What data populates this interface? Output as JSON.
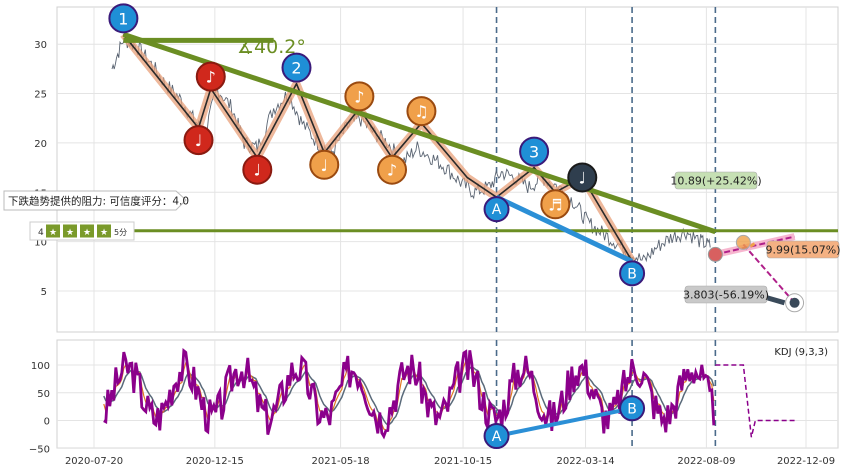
{
  "chart_data": [
    {
      "type": "line",
      "ylim": [
        0,
        34
      ],
      "y_ticks": [
        5,
        10,
        15,
        20,
        25,
        30
      ],
      "y_tick_labels": [
        "5",
        "10",
        "15",
        "20",
        "25",
        "30"
      ],
      "grid": true,
      "price_series": {
        "x": [
          "2020-08-11",
          "2020-08-25",
          "2020-09-10",
          "2020-09-28",
          "2020-10-15",
          "2020-11-02",
          "2020-11-18",
          "2020-12-03",
          "2020-12-18",
          "2021-01-05",
          "2021-01-20",
          "2021-02-05",
          "2021-02-25",
          "2021-03-15",
          "2021-04-01",
          "2021-04-20",
          "2021-05-07",
          "2021-05-25",
          "2021-06-10",
          "2021-06-28",
          "2021-07-15",
          "2021-08-02",
          "2021-08-20",
          "2021-09-07",
          "2021-09-24",
          "2021-10-12",
          "2021-10-28",
          "2021-11-15",
          "2021-12-01",
          "2021-12-17",
          "2022-01-04",
          "2022-01-20",
          "2022-02-10",
          "2022-02-28",
          "2022-03-16",
          "2022-04-01",
          "2022-04-19",
          "2022-05-06",
          "2022-05-24",
          "2022-06-10",
          "2022-06-28",
          "2022-07-15",
          "2022-08-02",
          "2022-08-15"
        ],
        "y": [
          27.5,
          30.5,
          29.8,
          28.0,
          26.0,
          24.5,
          22.5,
          21.0,
          25.5,
          23.5,
          20.0,
          19.5,
          23.5,
          25.0,
          22.0,
          20.0,
          19.0,
          21.5,
          22.5,
          21.0,
          20.0,
          18.0,
          19.5,
          18.5,
          17.5,
          16.0,
          15.0,
          15.5,
          17.0,
          16.5,
          15.5,
          16.5,
          15.5,
          14.0,
          12.0,
          11.0,
          10.0,
          9.0,
          8.0,
          9.5,
          10.5,
          11.0,
          10.0,
          9.5
        ]
      },
      "support_lines": [
        {
          "from": [
            "2020-08-25",
            31.0
          ],
          "to": [
            "2022-08-20",
            11.0
          ]
        },
        {
          "from": [
            "2021-11-25",
            14.5
          ],
          "to": [
            "2022-05-10",
            8.0
          ]
        }
      ],
      "horizontal_lines": [
        {
          "y": 11.1
        }
      ],
      "vertical_lines": [
        "2021-11-25",
        "2022-05-10",
        "2022-08-20"
      ],
      "short_flat_line": {
        "from": [
          "2020-08-25",
          31.0
        ],
        "to": [
          "2021-02-25",
          31.0
        ]
      },
      "angle_label": "∡40.2°",
      "wave_path": {
        "x": [
          "2020-08-25",
          "2020-11-25",
          "2020-12-10",
          "2021-02-05",
          "2021-03-25",
          "2021-04-28",
          "2021-06-10",
          "2021-07-20",
          "2021-08-25",
          "2021-10-20",
          "2021-11-25",
          "2022-01-10",
          "2022-02-05",
          "2022-03-10",
          "2022-05-10"
        ],
        "y": [
          31.0,
          21.5,
          25.5,
          18.5,
          26.0,
          19.0,
          23.5,
          18.5,
          22.0,
          16.5,
          14.5,
          17.5,
          15.0,
          16.5,
          8.0
        ]
      },
      "wave_markers": [
        {
          "label": "1",
          "x": "2020-08-25",
          "y": 31.0,
          "kind": "numbered"
        },
        {
          "label": "♩",
          "x": "2020-11-25",
          "y": 21.5,
          "kind": "red"
        },
        {
          "label": "♪",
          "x": "2020-12-10",
          "y": 25.5,
          "kind": "red"
        },
        {
          "label": "♩",
          "x": "2021-02-05",
          "y": 18.5,
          "kind": "red"
        },
        {
          "label": "2",
          "x": "2021-03-25",
          "y": 26.0,
          "kind": "numbered"
        },
        {
          "label": "♩",
          "x": "2021-04-28",
          "y": 19.0,
          "kind": "orange"
        },
        {
          "label": "♪",
          "x": "2021-06-10",
          "y": 23.5,
          "kind": "orange"
        },
        {
          "label": "♪",
          "x": "2021-07-20",
          "y": 18.5,
          "kind": "orange"
        },
        {
          "label": "♫",
          "x": "2021-08-25",
          "y": 22.0,
          "kind": "orange"
        },
        {
          "label": "A",
          "x": "2021-11-25",
          "y": 14.5,
          "kind": "letter"
        },
        {
          "label": "3",
          "x": "2022-01-10",
          "y": 17.5,
          "kind": "numbered"
        },
        {
          "label": "♬",
          "x": "2022-02-05",
          "y": 15.0,
          "kind": "orange"
        },
        {
          "label": "♩",
          "x": "2022-03-10",
          "y": 16.5,
          "kind": "dark"
        },
        {
          "label": "B",
          "x": "2022-05-10",
          "y": 8.0,
          "kind": "letter"
        }
      ],
      "forecast": {
        "start": {
          "x": "2022-08-20",
          "y": 8.7
        },
        "targets": [
          {
            "label": "10.89(+25.42%)",
            "x": "2022-09-10",
            "y": 10.9
          },
          {
            "label": "9.99(15.07%)",
            "x": "2022-11-25",
            "y": 10.0
          },
          {
            "label": "3.803(-56.19%)",
            "x": "2022-11-25",
            "y": 3.8
          }
        ]
      },
      "annotation": "下跌趋势提供的阻力: 可信度评分：4.0",
      "rating_badge": {
        "score": "4",
        "icon_count": 4,
        "tail": "5分"
      }
    },
    {
      "type": "line",
      "legend": "KDJ (9,3,3)",
      "ylim": [
        -50,
        140
      ],
      "y_ticks": [
        -50,
        0,
        50,
        100
      ],
      "y_tick_labels": [
        "−50",
        "0",
        "50",
        "100"
      ],
      "grid": true,
      "x_tick_labels": [
        "2020-07-20",
        "2020-12-15",
        "2021-05-18",
        "2021-10-15",
        "2022-03-14",
        "2022-08-09",
        "2022-12-09"
      ],
      "x_ticks": [
        "2020-07-20",
        "2020-12-15",
        "2021-05-18",
        "2021-10-15",
        "2022-03-14",
        "2022-08-09",
        "2022-12-09"
      ],
      "kdj_note": "oscillating J line (purple) with K/D (orange/grey) between about -30 and 130",
      "projection": {
        "from": [
          "2022-08-20",
          100
        ],
        "to": [
          "2022-11-25",
          0
        ]
      },
      "trend_line": {
        "from": [
          "2021-11-25",
          -28
        ],
        "to": [
          "2022-05-10",
          22
        ]
      },
      "markers": [
        {
          "label": "A",
          "x": "2021-11-25",
          "y": -28
        },
        {
          "label": "B",
          "x": "2022-05-10",
          "y": 22
        }
      ]
    }
  ],
  "colors": {
    "trend": "#6b8e23",
    "support": "#2b8fd6",
    "wave_hi": "#e8a07a",
    "numbered": "#1f8fd6",
    "red_marker": "#d0281c",
    "orange_marker": "#f0a04a",
    "dark_marker": "#2f3e4e",
    "kdj_j": "#8b008b",
    "kdj_k": "#e07820",
    "kdj_d": "#5a6a7a",
    "vline": "#4a6a8a",
    "green_label": "#c6e0b4",
    "orange_label": "#f4b183",
    "grey_label": "#c9c9c9"
  }
}
